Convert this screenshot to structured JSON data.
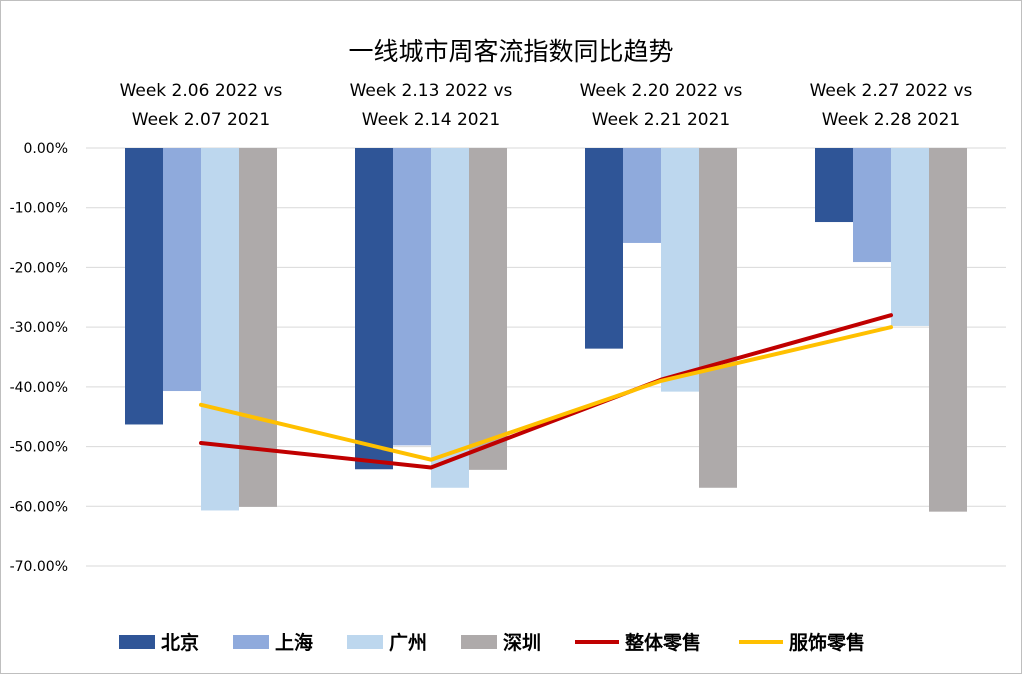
{
  "chart_data": {
    "type": "bar",
    "title": "一线城市周客流指数同比趋势",
    "categories": [
      [
        "Week 2.06 2022  vs",
        "Week 2.07 2021"
      ],
      [
        "Week 2.13 2022  vs",
        "Week 2.14 2021"
      ],
      [
        "Week 2.20 2022  vs",
        "Week 2.21 2021"
      ],
      [
        "Week 2.27 2022  vs",
        "Week 2.28 2021"
      ]
    ],
    "ylim": [
      -0.7,
      0
    ],
    "yticks": [
      0,
      -0.1,
      -0.2,
      -0.3,
      -0.4,
      -0.5,
      -0.6,
      -0.7
    ],
    "ytick_labels": [
      "0.00%",
      "-10.00%",
      "-20.00%",
      "-30.00%",
      "-40.00%",
      "-50.00%",
      "-60.00%",
      "-70.00%"
    ],
    "grid": true,
    "legend_position": "bottom",
    "series": [
      {
        "name": "北京",
        "kind": "bar",
        "color": "#2f5597",
        "values": [
          -0.463,
          -0.538,
          -0.336,
          -0.124
        ]
      },
      {
        "name": "上海",
        "kind": "bar",
        "color": "#8faadc",
        "values": [
          -0.407,
          -0.498,
          -0.159,
          -0.191
        ]
      },
      {
        "name": "广州",
        "kind": "bar",
        "color": "#bdd7ee",
        "values": [
          -0.607,
          -0.569,
          -0.408,
          -0.298
        ]
      },
      {
        "name": "深圳",
        "kind": "bar",
        "color": "#aeaaaa",
        "values": [
          -0.601,
          -0.539,
          -0.569,
          -0.609
        ]
      },
      {
        "name": "整体零售",
        "kind": "line",
        "color": "#c00000",
        "values": [
          -0.494,
          -0.535,
          -0.388,
          -0.28
        ]
      },
      {
        "name": "服饰零售",
        "kind": "line",
        "color": "#ffc000",
        "values": [
          -0.43,
          -0.522,
          -0.39,
          -0.3
        ]
      }
    ]
  }
}
